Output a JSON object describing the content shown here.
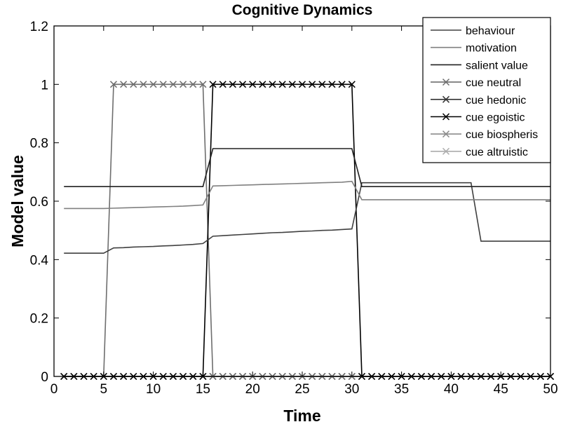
{
  "chart_data": {
    "type": "line",
    "title": "Cognitive Dynamics",
    "xlabel": "Time",
    "ylabel": "Model value",
    "xlim": [
      0,
      50
    ],
    "ylim": [
      0,
      1.2
    ],
    "xticks": [
      "0",
      "5",
      "10",
      "15",
      "20",
      "25",
      "30",
      "35",
      "40",
      "45",
      "50"
    ],
    "yticks": [
      "0",
      "0.2",
      "0.4",
      "0.6",
      "0.8",
      "1",
      "1.2"
    ],
    "grid": false,
    "legend_position": "upper right",
    "x": [
      1,
      2,
      3,
      4,
      5,
      6,
      7,
      8,
      9,
      10,
      11,
      12,
      13,
      14,
      15,
      16,
      17,
      18,
      19,
      20,
      21,
      22,
      23,
      24,
      25,
      26,
      27,
      28,
      29,
      30,
      31,
      32,
      33,
      34,
      35,
      36,
      37,
      38,
      39,
      40,
      41,
      42,
      43,
      44,
      45,
      46,
      47,
      48,
      49,
      50
    ],
    "series": [
      {
        "name": "behaviour",
        "color": "#404040",
        "marker": "none",
        "values": [
          0.422,
          0.422,
          0.422,
          0.422,
          0.422,
          0.44,
          0.441,
          0.443,
          0.444,
          0.445,
          0.447,
          0.448,
          0.45,
          0.452,
          0.455,
          0.48,
          0.482,
          0.484,
          0.486,
          0.488,
          0.49,
          0.492,
          0.493,
          0.495,
          0.497,
          0.498,
          0.5,
          0.501,
          0.503,
          0.505,
          0.663,
          0.663,
          0.663,
          0.663,
          0.663,
          0.663,
          0.663,
          0.663,
          0.663,
          0.663,
          0.663,
          0.663,
          0.463,
          0.463,
          0.463,
          0.463,
          0.463,
          0.463,
          0.463,
          0.463
        ]
      },
      {
        "name": "motivation",
        "color": "#808080",
        "marker": "none",
        "values": [
          0.575,
          0.575,
          0.575,
          0.575,
          0.575,
          0.576,
          0.577,
          0.578,
          0.579,
          0.58,
          0.581,
          0.582,
          0.583,
          0.585,
          0.587,
          0.652,
          0.653,
          0.654,
          0.655,
          0.656,
          0.657,
          0.658,
          0.659,
          0.66,
          0.661,
          0.662,
          0.663,
          0.664,
          0.665,
          0.668,
          0.605,
          0.605,
          0.605,
          0.605,
          0.605,
          0.605,
          0.605,
          0.605,
          0.605,
          0.605,
          0.605,
          0.605,
          0.605,
          0.605,
          0.605,
          0.605,
          0.605,
          0.605,
          0.605,
          0.605
        ]
      },
      {
        "name": "salient value",
        "color": "#202020",
        "marker": "none",
        "values": [
          0.65,
          0.65,
          0.65,
          0.65,
          0.65,
          0.65,
          0.65,
          0.65,
          0.65,
          0.65,
          0.65,
          0.65,
          0.65,
          0.65,
          0.65,
          0.78,
          0.78,
          0.78,
          0.78,
          0.78,
          0.78,
          0.78,
          0.78,
          0.78,
          0.78,
          0.78,
          0.78,
          0.78,
          0.78,
          0.78,
          0.65,
          0.65,
          0.65,
          0.65,
          0.65,
          0.65,
          0.65,
          0.65,
          0.65,
          0.65,
          0.65,
          0.65,
          0.65,
          0.65,
          0.65,
          0.65,
          0.65,
          0.65,
          0.65,
          0.65
        ]
      },
      {
        "name": "cue neutral",
        "color": "#6e6e6e",
        "marker": "x",
        "values": [
          0,
          0,
          0,
          0,
          0,
          1,
          1,
          1,
          1,
          1,
          1,
          1,
          1,
          1,
          1,
          0,
          0,
          0,
          0,
          0,
          0,
          0,
          0,
          0,
          0,
          0,
          0,
          0,
          0,
          0,
          0,
          0,
          0,
          0,
          0,
          0,
          0,
          0,
          0,
          0,
          0,
          0,
          0,
          0,
          0,
          0,
          0,
          0,
          0,
          0
        ]
      },
      {
        "name": "cue hedonic",
        "color": "#333333",
        "marker": "x",
        "values": [
          0,
          0,
          0,
          0,
          0,
          0,
          0,
          0,
          0,
          0,
          0,
          0,
          0,
          0,
          0,
          0,
          0,
          0,
          0,
          0,
          0,
          0,
          0,
          0,
          0,
          0,
          0,
          0,
          0,
          0,
          0,
          0,
          0,
          0,
          0,
          0,
          0,
          0,
          0,
          0,
          0,
          0,
          0,
          0,
          0,
          0,
          0,
          0,
          0,
          0
        ]
      },
      {
        "name": "cue egoistic",
        "color": "#000000",
        "marker": "x",
        "values": [
          0,
          0,
          0,
          0,
          0,
          0,
          0,
          0,
          0,
          0,
          0,
          0,
          0,
          0,
          0,
          1,
          1,
          1,
          1,
          1,
          1,
          1,
          1,
          1,
          1,
          1,
          1,
          1,
          1,
          1,
          0,
          0,
          0,
          0,
          0,
          0,
          0,
          0,
          0,
          0,
          0,
          0,
          0,
          0,
          0,
          0,
          0,
          0,
          0,
          0
        ]
      },
      {
        "name": "cue biospheris",
        "color": "#8c8c8c",
        "marker": "x",
        "values": [
          0,
          0,
          0,
          0,
          0,
          0,
          0,
          0,
          0,
          0,
          0,
          0,
          0,
          0,
          0,
          0,
          0,
          0,
          0,
          0,
          0,
          0,
          0,
          0,
          0,
          0,
          0,
          0,
          0,
          0,
          0,
          0,
          0,
          0,
          0,
          0,
          0,
          0,
          0,
          0,
          0,
          0,
          0,
          0,
          0,
          0,
          0,
          0,
          0,
          0
        ]
      },
      {
        "name": "cue altruistic",
        "color": "#ababab",
        "marker": "x",
        "values": [
          0,
          0,
          0,
          0,
          0,
          0,
          0,
          0,
          0,
          0,
          0,
          0,
          0,
          0,
          0,
          0,
          0,
          0,
          0,
          0,
          0,
          0,
          0,
          0,
          0,
          0,
          0,
          0,
          0,
          0,
          0,
          0,
          0,
          0,
          0,
          0,
          0,
          0,
          0,
          0,
          0,
          0,
          0,
          0,
          0,
          0,
          0,
          0,
          0,
          0
        ]
      }
    ]
  }
}
